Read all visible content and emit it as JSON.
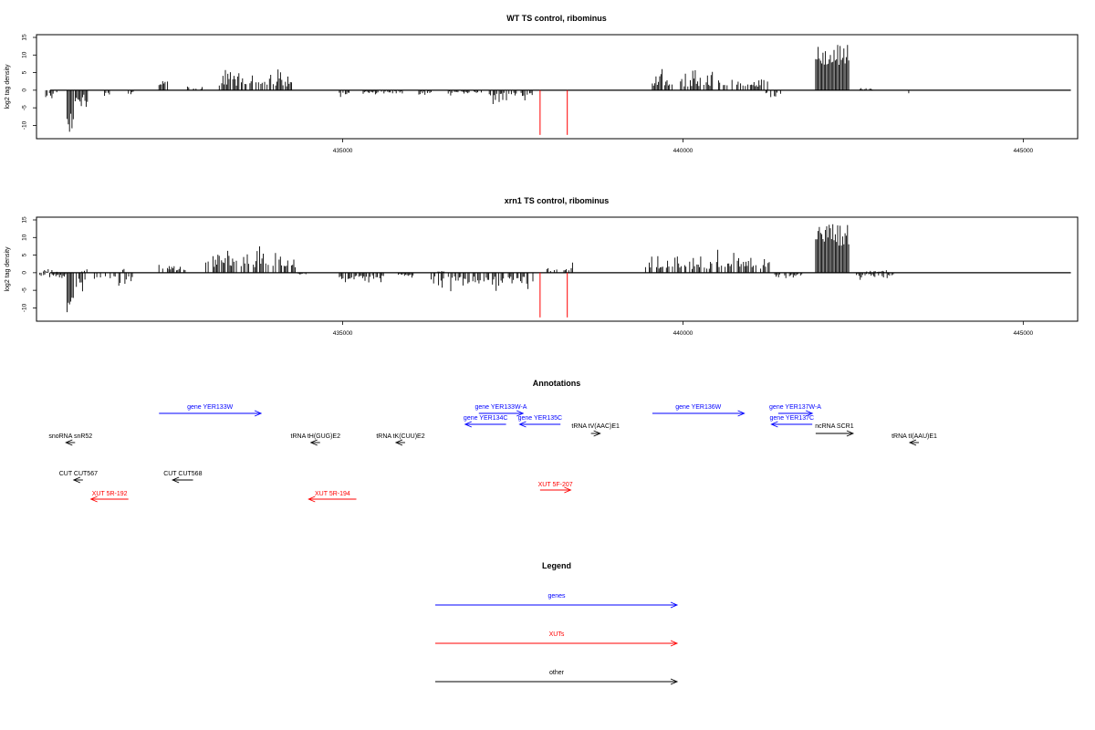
{
  "panels": [
    {
      "title": "WT TS control, ribominus",
      "ylabel": "log2 tag density",
      "chart_data": {
        "type": "bar",
        "title": "WT TS control, ribominus",
        "xlabel": "",
        "ylabel": "log2 tag density",
        "xlim": [
          430500,
          445800
        ],
        "ylim": [
          -13,
          15
        ],
        "yticks": [
          -10,
          -5,
          0,
          5,
          10,
          15
        ],
        "xticks": [
          435000,
          440000,
          445000
        ],
        "xtick_labels": [
          "435000",
          "440000",
          "445000"
        ],
        "marker_lines": [
          437900,
          438300
        ],
        "signal_regions": [
          {
            "start": 430600,
            "end": 430800,
            "sign": -1,
            "max": 3
          },
          {
            "start": 430950,
            "end": 431050,
            "sign": -1,
            "max": 12
          },
          {
            "start": 431050,
            "end": 431250,
            "sign": -1,
            "max": 6
          },
          {
            "start": 431500,
            "end": 431600,
            "sign": -1,
            "max": 3
          },
          {
            "start": 431850,
            "end": 431950,
            "sign": -1,
            "max": 2
          },
          {
            "start": 432300,
            "end": 432450,
            "sign": 1,
            "max": 5
          },
          {
            "start": 432700,
            "end": 432950,
            "sign": 1,
            "max": 2
          },
          {
            "start": 433150,
            "end": 434300,
            "sign": 1,
            "max": 6.5
          },
          {
            "start": 434950,
            "end": 435100,
            "sign": -1,
            "max": 3
          },
          {
            "start": 435300,
            "end": 435900,
            "sign": -1,
            "max": 1.5
          },
          {
            "start": 436100,
            "end": 436350,
            "sign": -1,
            "max": 1.5
          },
          {
            "start": 436550,
            "end": 437050,
            "sign": -1,
            "max": 1.5
          },
          {
            "start": 437100,
            "end": 437800,
            "sign": -1,
            "max": 4
          },
          {
            "start": 439550,
            "end": 441250,
            "sign": 1,
            "max": 6
          },
          {
            "start": 441200,
            "end": 441450,
            "sign": -1,
            "max": 3
          },
          {
            "start": 441950,
            "end": 442450,
            "sign": 1,
            "max": 13
          },
          {
            "start": 442600,
            "end": 442800,
            "sign": 1,
            "max": 1
          },
          {
            "start": 443300,
            "end": 443350,
            "sign": -1,
            "max": 2
          }
        ]
      }
    },
    {
      "title": "xrn1 TS control, ribominus",
      "ylabel": "log2 tag density",
      "chart_data": {
        "type": "bar",
        "title": "xrn1 TS control, ribominus",
        "xlabel": "",
        "ylabel": "log2 tag density",
        "xlim": [
          430500,
          445800
        ],
        "ylim": [
          -13,
          15
        ],
        "yticks": [
          -10,
          -5,
          0,
          5,
          10,
          15
        ],
        "xticks": [
          435000,
          440000,
          445000
        ],
        "xtick_labels": [
          "435000",
          "440000",
          "445000"
        ],
        "marker_lines": [
          437900,
          438300
        ],
        "signal_regions": [
          {
            "start": 430550,
            "end": 430950,
            "sign": -1,
            "max": 2
          },
          {
            "start": 430600,
            "end": 430800,
            "sign": 1,
            "max": 1
          },
          {
            "start": 430950,
            "end": 431050,
            "sign": -1,
            "max": 12
          },
          {
            "start": 431050,
            "end": 431250,
            "sign": -1,
            "max": 6
          },
          {
            "start": 431150,
            "end": 431250,
            "sign": 1,
            "max": 2
          },
          {
            "start": 431350,
            "end": 431950,
            "sign": -1,
            "max": 5
          },
          {
            "start": 431750,
            "end": 431800,
            "sign": 1,
            "max": 2
          },
          {
            "start": 432300,
            "end": 432450,
            "sign": 1,
            "max": 5
          },
          {
            "start": 432450,
            "end": 432700,
            "sign": 1,
            "max": 3
          },
          {
            "start": 432950,
            "end": 434300,
            "sign": 1,
            "max": 7.5
          },
          {
            "start": 434350,
            "end": 434500,
            "sign": -1,
            "max": 1
          },
          {
            "start": 434950,
            "end": 435600,
            "sign": -1,
            "max": 3.5
          },
          {
            "start": 435800,
            "end": 436050,
            "sign": -1,
            "max": 2
          },
          {
            "start": 436300,
            "end": 437800,
            "sign": -1,
            "max": 5.5
          },
          {
            "start": 436400,
            "end": 436500,
            "sign": 1,
            "max": 1
          },
          {
            "start": 438000,
            "end": 438150,
            "sign": 1,
            "max": 2
          },
          {
            "start": 438250,
            "end": 438400,
            "sign": 1,
            "max": 3
          },
          {
            "start": 439450,
            "end": 441300,
            "sign": 1,
            "max": 6.5
          },
          {
            "start": 441350,
            "end": 441750,
            "sign": -1,
            "max": 2
          },
          {
            "start": 441950,
            "end": 442450,
            "sign": 1,
            "max": 14
          },
          {
            "start": 442550,
            "end": 443100,
            "sign": -1,
            "max": 2
          },
          {
            "start": 442700,
            "end": 443000,
            "sign": 1,
            "max": 1
          }
        ]
      }
    }
  ],
  "annotations": {
    "title": "Annotations",
    "features": [
      {
        "label": "gene YER133W",
        "type": "gene",
        "start": 432300,
        "end": 433800,
        "strand": "+",
        "row": 1
      },
      {
        "label": "gene YER133W-A",
        "type": "gene",
        "start": 437000,
        "end": 437650,
        "strand": "+",
        "row": 1
      },
      {
        "label": "gene YER134C",
        "type": "gene",
        "start": 436800,
        "end": 437400,
        "strand": "-",
        "row": 2
      },
      {
        "label": "gene YER135C",
        "type": "gene",
        "start": 437600,
        "end": 438200,
        "strand": "-",
        "row": 2
      },
      {
        "label": "gene YER136W",
        "type": "gene",
        "start": 439550,
        "end": 440900,
        "strand": "+",
        "row": 1
      },
      {
        "label": "gene YER137W-A",
        "type": "gene",
        "start": 441400,
        "end": 441900,
        "strand": "+",
        "row": 1
      },
      {
        "label": "gene YER137C",
        "type": "gene",
        "start": 441300,
        "end": 441900,
        "strand": "-",
        "row": 2
      },
      {
        "label": "tRNA tV(AAC)E1",
        "type": "other",
        "start": 438650,
        "end": 438780,
        "strand": "+",
        "row": 3
      },
      {
        "label": "ncRNA SCR1",
        "type": "other",
        "start": 441950,
        "end": 442500,
        "strand": "+",
        "row": 3
      },
      {
        "label": "snoRNA snR52",
        "type": "other",
        "start": 430950,
        "end": 431050,
        "strand": "-",
        "row": 4
      },
      {
        "label": "tRNA tH(GUG)E2",
        "type": "other",
        "start": 434550,
        "end": 434650,
        "strand": "-",
        "row": 4
      },
      {
        "label": "tRNA tK(CUU)E2",
        "type": "other",
        "start": 435800,
        "end": 435900,
        "strand": "-",
        "row": 4
      },
      {
        "label": "tRNA tI(AAU)E1",
        "type": "other",
        "start": 443350,
        "end": 443450,
        "strand": "-",
        "row": 4
      },
      {
        "label": "CUT CUT567",
        "type": "other",
        "start": 431050,
        "end": 431180,
        "strand": "-",
        "row": 5
      },
      {
        "label": "CUT CUT568",
        "type": "other",
        "start": 432500,
        "end": 432800,
        "strand": "-",
        "row": 5
      },
      {
        "label": "XUT 5F-207",
        "type": "xut",
        "start": 437900,
        "end": 438350,
        "strand": "+",
        "row": 6
      },
      {
        "label": "XUT 5R-192",
        "type": "xut",
        "start": 431300,
        "end": 431850,
        "strand": "-",
        "row": 7
      },
      {
        "label": "XUT 5R-194",
        "type": "xut",
        "start": 434500,
        "end": 435200,
        "strand": "-",
        "row": 7
      }
    ]
  },
  "legend": {
    "title": "Legend",
    "items": [
      {
        "label": "genes",
        "color": "#0000ff"
      },
      {
        "label": "XUTs",
        "color": "#ff0000"
      },
      {
        "label": "other",
        "color": "#000000"
      }
    ]
  },
  "colors": {
    "gene": "#0000ff",
    "xut": "#ff0000",
    "other": "#000000",
    "marker": "#ff0000",
    "signal": "#000000"
  }
}
